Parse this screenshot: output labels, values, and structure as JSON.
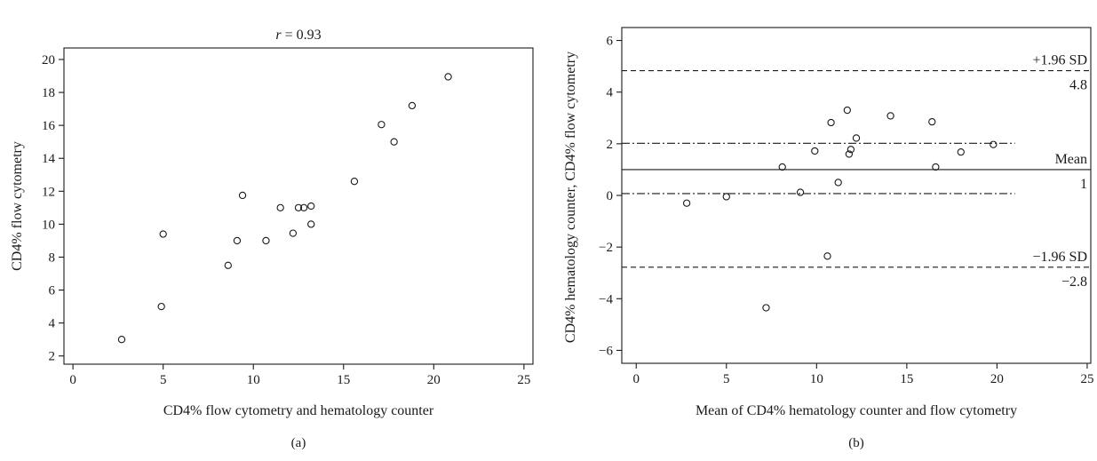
{
  "chart_data": [
    {
      "type": "scatter",
      "panel_label": "(a)",
      "title_var": "r",
      "title_rest": " = 0.93",
      "xlabel": "CD4% flow cytometry and hematology counter",
      "ylabel": "CD4% flow cytometry",
      "xlim": [
        -0.5,
        25.5
      ],
      "ylim": [
        1.5,
        20.7
      ],
      "x_ticks": [
        0,
        5,
        10,
        15,
        20,
        25
      ],
      "y_ticks": [
        2,
        4,
        6,
        8,
        10,
        12,
        14,
        16,
        18,
        20
      ],
      "points": [
        {
          "x": 2.7,
          "y": 3.0
        },
        {
          "x": 4.9,
          "y": 5.0
        },
        {
          "x": 5.0,
          "y": 9.4
        },
        {
          "x": 8.6,
          "y": 7.5
        },
        {
          "x": 9.1,
          "y": 9.0
        },
        {
          "x": 9.4,
          "y": 11.75
        },
        {
          "x": 10.7,
          "y": 9.0
        },
        {
          "x": 11.5,
          "y": 11.0
        },
        {
          "x": 12.2,
          "y": 9.45
        },
        {
          "x": 12.5,
          "y": 11.0
        },
        {
          "x": 12.8,
          "y": 11.0
        },
        {
          "x": 13.2,
          "y": 11.1
        },
        {
          "x": 13.2,
          "y": 10.0
        },
        {
          "x": 15.6,
          "y": 12.6
        },
        {
          "x": 17.1,
          "y": 16.05
        },
        {
          "x": 17.8,
          "y": 15.0
        },
        {
          "x": 18.8,
          "y": 17.2
        },
        {
          "x": 20.8,
          "y": 18.95
        }
      ]
    },
    {
      "type": "scatter",
      "subtype": "bland-altman",
      "panel_label": "(b)",
      "xlabel": "Mean of CD4% hematology counter and flow cytometry",
      "ylabel": "CD4% hematology counter, CD4% flow cytometry",
      "xlim": [
        -0.8,
        25.2
      ],
      "ylim": [
        -6.5,
        6.5
      ],
      "x_ticks": [
        0,
        5,
        10,
        15,
        20,
        25
      ],
      "y_ticks": [
        -6,
        -4,
        -2,
        0,
        2,
        4,
        6
      ],
      "reference_lines": {
        "upper_loa": {
          "y": 4.83,
          "label": "+1.96 SD",
          "value_label": "4.8"
        },
        "mean": {
          "y": 1.0,
          "label": "Mean",
          "value_label": "1"
        },
        "lower_loa": {
          "y": -2.78,
          "label": "−1.96 SD",
          "value_label": "−2.8"
        },
        "mean_ci_upper": {
          "y": 2.02,
          "x_end": 21
        },
        "mean_ci_lower": {
          "y": 0.07,
          "x_end": 21
        }
      },
      "points": [
        {
          "x": 2.8,
          "y": -0.3
        },
        {
          "x": 5.0,
          "y": -0.05
        },
        {
          "x": 7.2,
          "y": -4.35
        },
        {
          "x": 8.1,
          "y": 1.1
        },
        {
          "x": 9.1,
          "y": 0.12
        },
        {
          "x": 9.9,
          "y": 1.72
        },
        {
          "x": 10.6,
          "y": -2.35
        },
        {
          "x": 10.8,
          "y": 2.82
        },
        {
          "x": 11.2,
          "y": 0.5
        },
        {
          "x": 11.7,
          "y": 3.3
        },
        {
          "x": 11.8,
          "y": 1.6
        },
        {
          "x": 11.9,
          "y": 1.78
        },
        {
          "x": 12.2,
          "y": 2.22
        },
        {
          "x": 14.1,
          "y": 3.08
        },
        {
          "x": 16.4,
          "y": 2.85
        },
        {
          "x": 16.6,
          "y": 1.1
        },
        {
          "x": 18.0,
          "y": 1.68
        },
        {
          "x": 19.8,
          "y": 1.97
        }
      ]
    }
  ]
}
